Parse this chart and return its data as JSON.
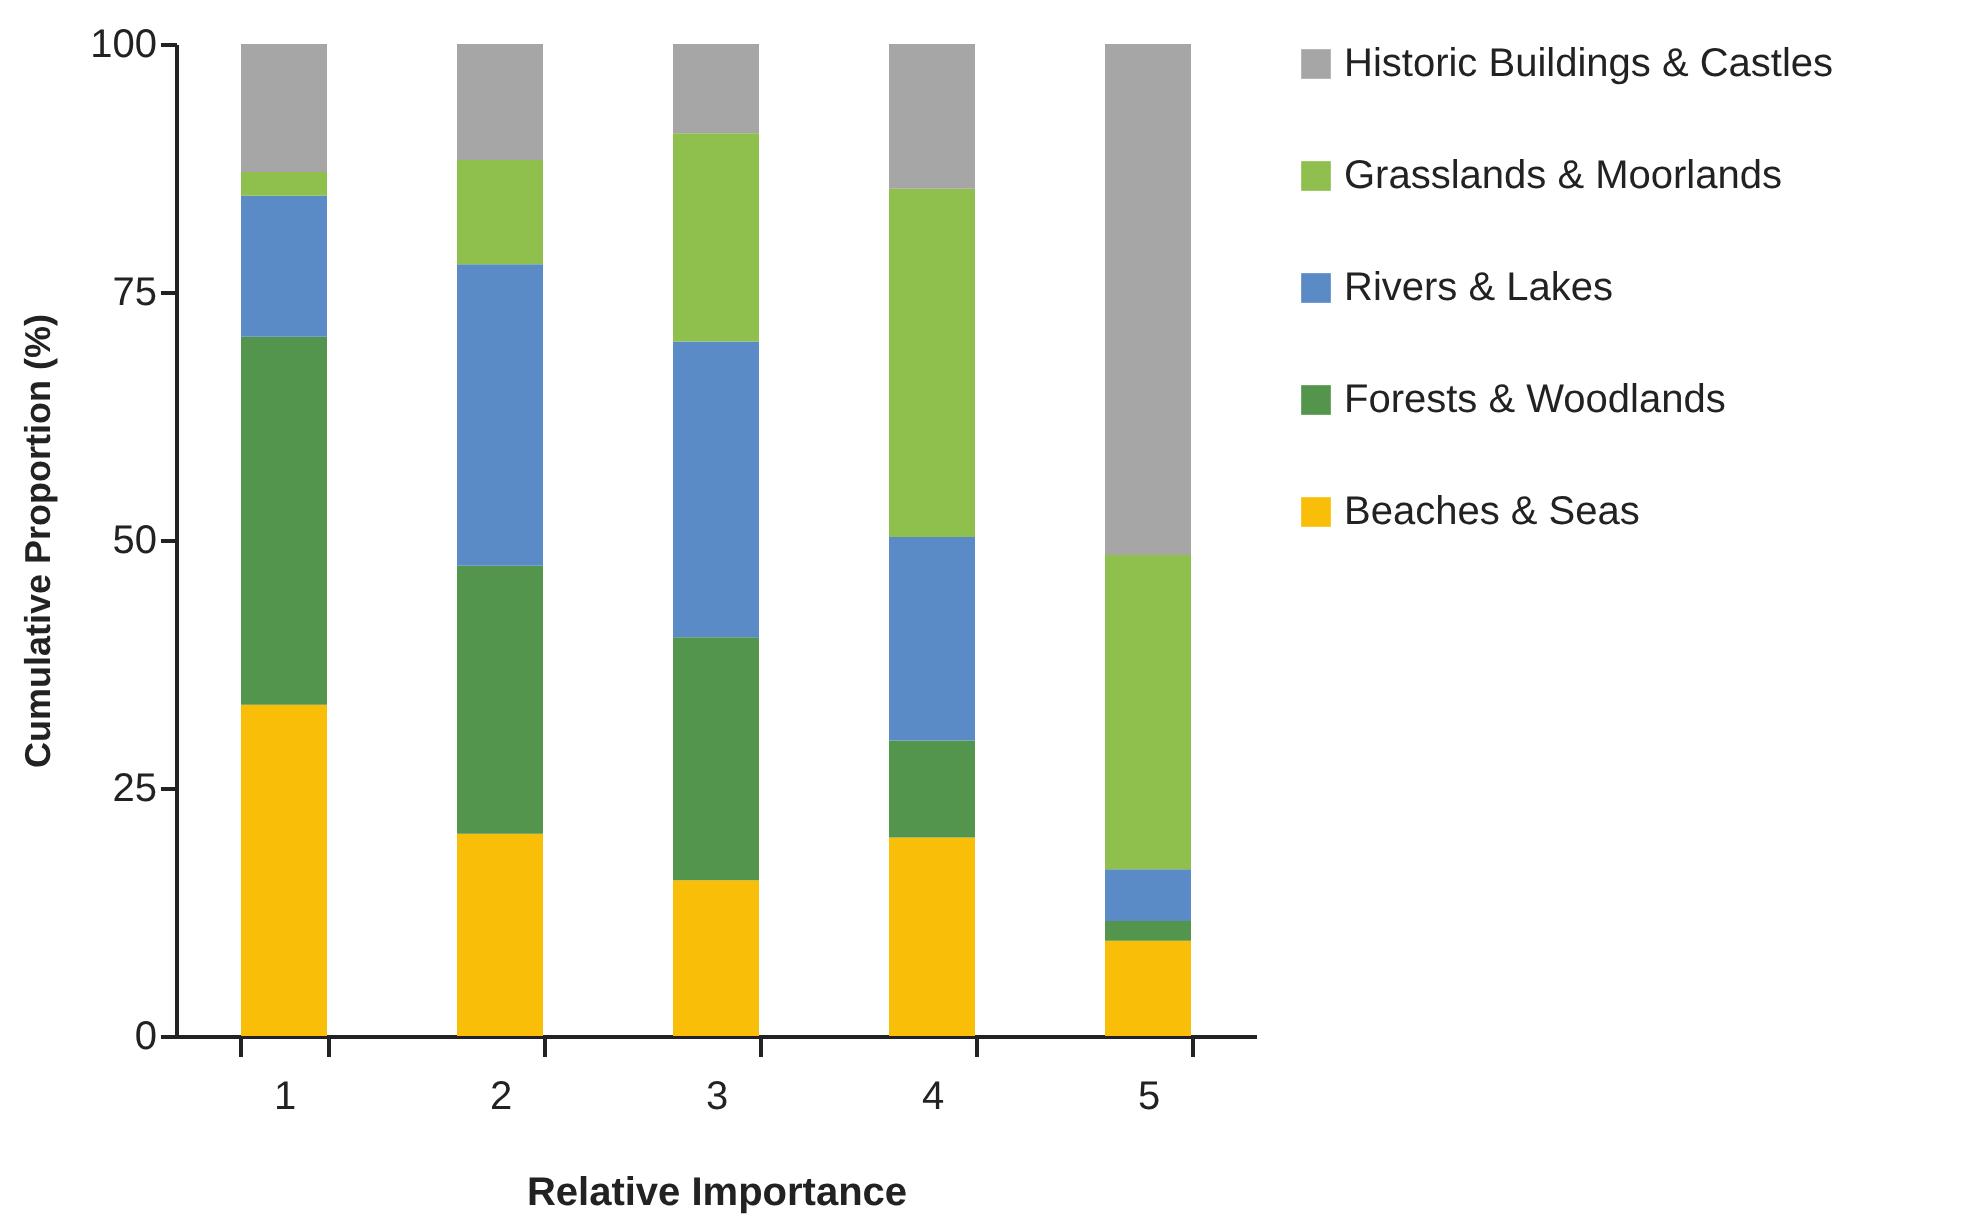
{
  "chart_data": {
    "type": "bar",
    "stacked": true,
    "xlabel": "Relative Importance",
    "ylabel": "Cumulative Proportion (%)",
    "categories": [
      "1",
      "2",
      "3",
      "4",
      "5"
    ],
    "series": [
      {
        "name": "Beaches & Seas",
        "color": "#f9bf08",
        "values": [
          33.4,
          20.4,
          15.7,
          20.0,
          9.6
        ]
      },
      {
        "name": "Forests & Woodlands",
        "color": "#53954d",
        "values": [
          37.1,
          27.0,
          24.5,
          9.8,
          2.0
        ]
      },
      {
        "name": "Rivers & Lakes",
        "color": "#5a8bc6",
        "values": [
          14.2,
          30.4,
          29.8,
          20.5,
          5.2
        ]
      },
      {
        "name": "Grasslands & Moorlands",
        "color": "#8fbf4c",
        "values": [
          2.4,
          10.5,
          21.0,
          35.1,
          31.7
        ]
      },
      {
        "name": "Historic Buildings & Castles",
        "color": "#a5a6a5",
        "values": [
          12.9,
          11.7,
          9.0,
          14.6,
          51.5
        ]
      }
    ],
    "ylim": [
      0,
      100
    ],
    "yticks": [
      0,
      25,
      50,
      75,
      100
    ],
    "grid": false,
    "legend": "right"
  }
}
